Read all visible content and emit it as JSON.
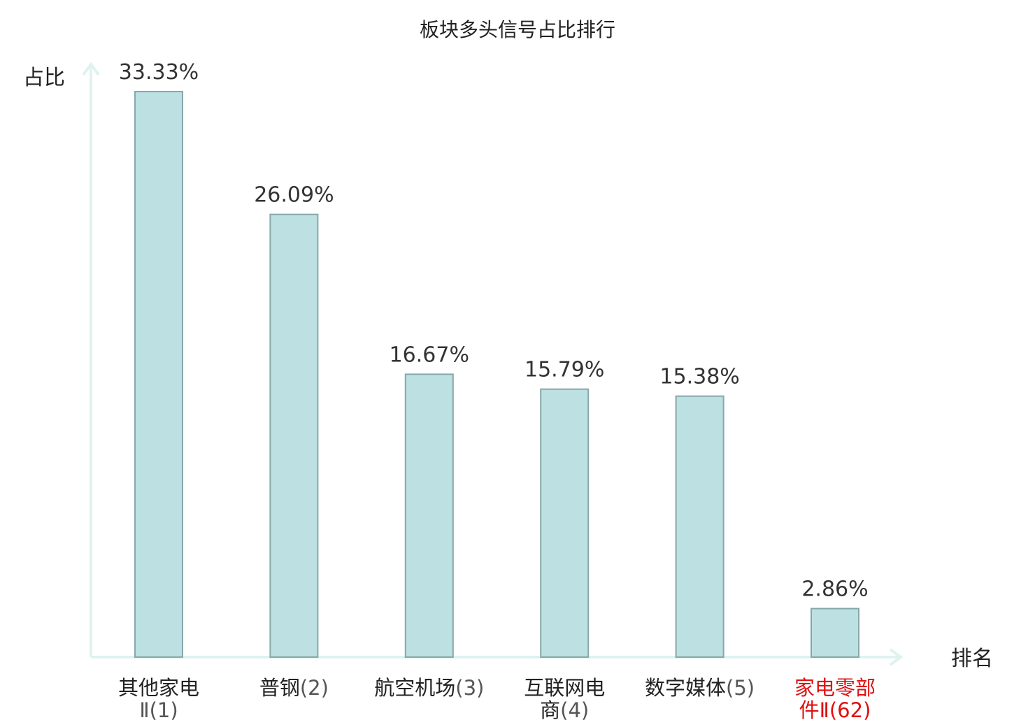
{
  "chart_data": {
    "type": "bar",
    "title": "板块多头信号占比排行",
    "ylabel": "占比",
    "xlabel": "排名",
    "ylim": [
      0,
      35
    ],
    "grid": false,
    "categories": [
      {
        "lines": [
          "其他家电",
          "Ⅱ(1)"
        ],
        "highlight": false
      },
      {
        "lines": [
          "普钢(2)"
        ],
        "highlight": false
      },
      {
        "lines": [
          "航空机场(3)"
        ],
        "highlight": false
      },
      {
        "lines": [
          "互联网电",
          "商(4)"
        ],
        "highlight": false
      },
      {
        "lines": [
          "数字媒体(5)"
        ],
        "highlight": false
      },
      {
        "lines": [
          "家电零部",
          "件Ⅱ(62)"
        ],
        "highlight": true
      }
    ],
    "values": [
      33.33,
      26.09,
      16.67,
      15.79,
      15.38,
      2.86
    ],
    "value_labels": [
      "33.33%",
      "26.09%",
      "16.67%",
      "15.79%",
      "15.38%",
      "2.86%"
    ],
    "colors": {
      "bar_fill": "#bde0e3",
      "bar_stroke": "#86a8aa",
      "axis": "#dff2ef",
      "highlight": "#e01010"
    }
  }
}
